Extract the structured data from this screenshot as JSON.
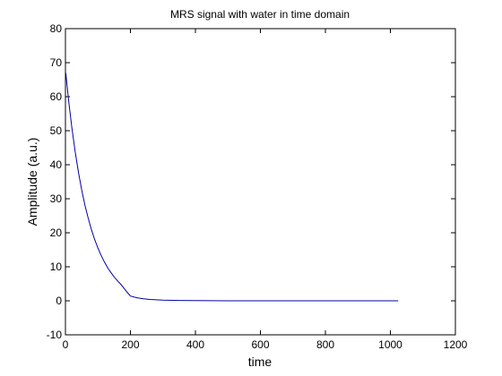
{
  "chart_data": {
    "type": "line",
    "title": "MRS signal with water in time domain",
    "xlabel": "time",
    "ylabel": "Amplitude (a.u.)",
    "xlim": [
      0,
      1200
    ],
    "ylim": [
      -10,
      80
    ],
    "xticks": [
      0,
      200,
      400,
      600,
      800,
      1000,
      1200
    ],
    "yticks": [
      -10,
      0,
      10,
      20,
      30,
      40,
      50,
      60,
      70,
      80
    ],
    "grid": false,
    "line_color": "#0000aa",
    "series": [
      {
        "x": [
          1,
          10,
          20,
          30,
          40,
          50,
          60,
          70,
          80,
          90,
          100,
          110,
          120,
          130,
          140,
          150,
          160,
          170,
          180,
          190,
          200,
          220,
          240,
          260,
          280,
          300,
          350,
          400,
          500,
          600,
          700,
          800,
          900,
          1000,
          1024
        ],
        "values": [
          67,
          58.7,
          50.7,
          43.8,
          37.8,
          32.6,
          28.1,
          24.3,
          20.9,
          18.0,
          15.5,
          13.3,
          11.4,
          9.7,
          8.3,
          7.0,
          5.9,
          4.9,
          3.7,
          2.5,
          1.4,
          0.9,
          0.6,
          0.4,
          0.3,
          0.2,
          0.1,
          0.05,
          0.0,
          0.0,
          0.0,
          0.0,
          0.0,
          0.0,
          0.0
        ]
      }
    ]
  }
}
